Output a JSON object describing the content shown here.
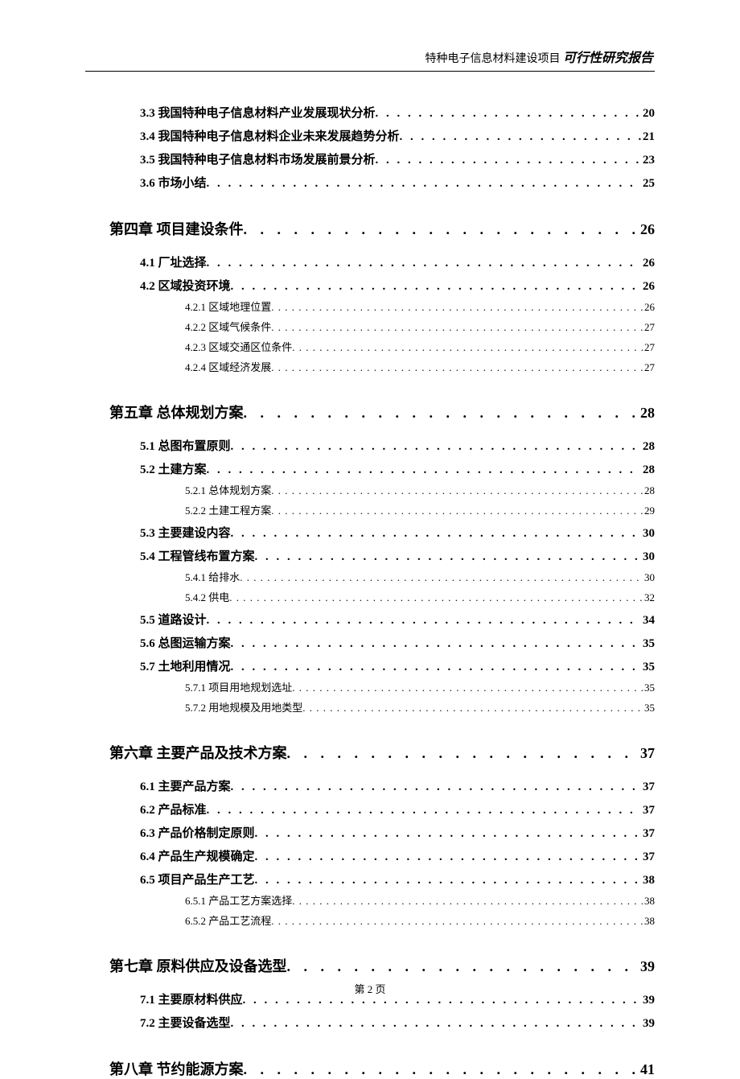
{
  "header": {
    "project_name": "特种电子信息材料建设项目",
    "report_type": "可行性研究报告"
  },
  "toc": [
    {
      "level": 2,
      "title": "3.3 我国特种电子信息材料产业发展现状分析",
      "page": "20"
    },
    {
      "level": 2,
      "title": "3.4 我国特种电子信息材料企业未来发展趋势分析",
      "page": "21"
    },
    {
      "level": 2,
      "title": "3.5 我国特种电子信息材料市场发展前景分析",
      "page": "23"
    },
    {
      "level": 2,
      "title": "3.6 市场小结",
      "page": "25"
    },
    {
      "level": 1,
      "title": "第四章 项目建设条件",
      "page": "26"
    },
    {
      "level": 2,
      "title": "4.1 厂址选择",
      "page": "26"
    },
    {
      "level": 2,
      "title": "4.2 区域投资环境",
      "page": "26"
    },
    {
      "level": 3,
      "title": "4.2.1 区域地理位置",
      "page": "26"
    },
    {
      "level": 3,
      "title": "4.2.2 区域气候条件",
      "page": "27"
    },
    {
      "level": 3,
      "title": "4.2.3 区域交通区位条件",
      "page": "27"
    },
    {
      "level": 3,
      "title": "4.2.4 区域经济发展",
      "page": "27"
    },
    {
      "level": 1,
      "title": "第五章 总体规划方案",
      "page": "28"
    },
    {
      "level": 2,
      "title": "5.1 总图布置原则",
      "page": "28"
    },
    {
      "level": 2,
      "title": "5.2 土建方案",
      "page": "28"
    },
    {
      "level": 3,
      "title": "5.2.1 总体规划方案",
      "page": "28"
    },
    {
      "level": 3,
      "title": "5.2.2 土建工程方案",
      "page": "29"
    },
    {
      "level": 2,
      "title": "5.3 主要建设内容",
      "page": "30"
    },
    {
      "level": 2,
      "title": "5.4 工程管线布置方案",
      "page": "30"
    },
    {
      "level": 3,
      "title": "5.4.1 给排水",
      "page": "30"
    },
    {
      "level": 3,
      "title": "5.4.2 供电",
      "page": "32"
    },
    {
      "level": 2,
      "title": "5.5 道路设计",
      "page": "34"
    },
    {
      "level": 2,
      "title": "5.6 总图运输方案",
      "page": "35"
    },
    {
      "level": 2,
      "title": "5.7 土地利用情况",
      "page": "35"
    },
    {
      "level": 3,
      "title": "5.7.1 项目用地规划选址",
      "page": "35"
    },
    {
      "level": 3,
      "title": "5.7.2 用地规模及用地类型",
      "page": "35"
    },
    {
      "level": 1,
      "title": "第六章 主要产品及技术方案",
      "page": "37"
    },
    {
      "level": 2,
      "title": "6.1 主要产品方案",
      "page": "37"
    },
    {
      "level": 2,
      "title": "6.2 产品标准",
      "page": "37"
    },
    {
      "level": 2,
      "title": "6.3 产品价格制定原则",
      "page": "37"
    },
    {
      "level": 2,
      "title": "6.4 产品生产规模确定",
      "page": "37"
    },
    {
      "level": 2,
      "title": "6.5 项目产品生产工艺",
      "page": "38"
    },
    {
      "level": 3,
      "title": "6.5.1 产品工艺方案选择",
      "page": "38"
    },
    {
      "level": 3,
      "title": "6.5.2 产品工艺流程",
      "page": "38"
    },
    {
      "level": 1,
      "title": "第七章 原料供应及设备选型",
      "page": "39"
    },
    {
      "level": 2,
      "title": "7.1 主要原材料供应",
      "page": "39"
    },
    {
      "level": 2,
      "title": "7.2 主要设备选型",
      "page": "39"
    },
    {
      "level": 1,
      "title": "第八章 节约能源方案",
      "page": "41"
    }
  ],
  "footer": {
    "page_number": "第 2 页"
  },
  "dots": ". . . . . . . . . . . . . . . . . . . . . . . . . . . . . . . . . . . . . . . . . . . . . . . . . . . . . . . . . . . . . . . . . . . . . . . . . . . . . . . . . . . . . . . . . . . . . . . . . . . . . ."
}
